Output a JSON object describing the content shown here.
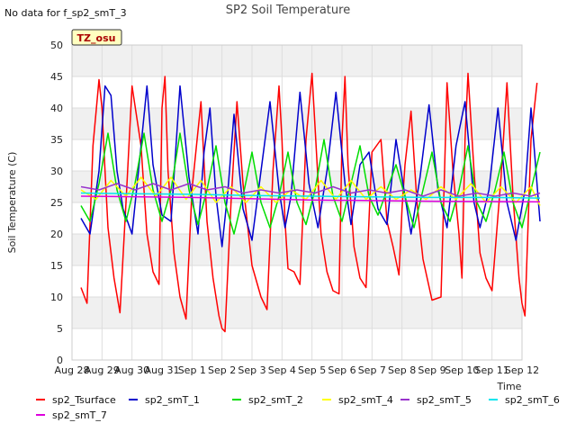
{
  "chart_data": {
    "type": "line",
    "title": "SP2 Soil Temperature",
    "note": "No data for f_sp2_smT_3",
    "badge": "TZ_osu",
    "xlabel": "Time",
    "ylabel": "Soil Temperature (C)",
    "ylim": [
      0,
      50
    ],
    "xlim": [
      0,
      15
    ],
    "yticks": [
      0,
      5,
      10,
      15,
      20,
      25,
      30,
      35,
      40,
      45,
      50
    ],
    "xticks": [
      "Aug 28",
      "Aug 29",
      "Aug 30",
      "Aug 31",
      "Sep 1",
      "Sep 2",
      "Sep 3",
      "Sep 4",
      "Sep 5",
      "Sep 6",
      "Sep 7",
      "Sep 8",
      "Sep 9",
      "Sep 10",
      "Sep 11",
      "Sep 12"
    ],
    "grid": true,
    "legend_position": "bottom",
    "series": [
      {
        "name": "sp2_Tsurface",
        "color": "#ff0000",
        "x": [
          0.3,
          0.5,
          0.7,
          0.9,
          1.0,
          1.1,
          1.2,
          1.4,
          1.6,
          1.8,
          2.0,
          2.3,
          2.5,
          2.7,
          2.9,
          3.0,
          3.1,
          3.2,
          3.4,
          3.6,
          3.8,
          4.0,
          4.3,
          4.5,
          4.7,
          4.9,
          5.0,
          5.1,
          5.3,
          5.5,
          5.7,
          6.0,
          6.3,
          6.5,
          6.7,
          6.9,
          7.0,
          7.1,
          7.2,
          7.4,
          7.6,
          7.8,
          8.0,
          8.3,
          8.5,
          8.7,
          8.9,
          9.0,
          9.1,
          9.2,
          9.4,
          9.6,
          9.8,
          10.0,
          10.3,
          10.5,
          10.7,
          10.9,
          11.0,
          11.1,
          11.3,
          11.5,
          11.7,
          12.0,
          12.3,
          12.5,
          12.7,
          12.9,
          13.0,
          13.1,
          13.2,
          13.4,
          13.6,
          13.8,
          14.0,
          14.3,
          14.5,
          14.7,
          14.9,
          15.0,
          15.1,
          15.3,
          15.5
        ],
        "y": [
          11.5,
          9.0,
          34.0,
          44.5,
          40.0,
          30.0,
          21.0,
          13.0,
          7.5,
          25.0,
          43.5,
          34.0,
          20.0,
          14.0,
          12.0,
          40.0,
          45.0,
          30.0,
          17.0,
          10.0,
          6.5,
          27.0,
          41.0,
          22.0,
          13.0,
          7.0,
          5.0,
          4.5,
          25.0,
          41.0,
          28.0,
          15.0,
          10.0,
          8.0,
          30.0,
          43.5,
          35.0,
          22.0,
          14.5,
          14.0,
          12.0,
          35.0,
          45.5,
          20.0,
          14.0,
          11.0,
          10.5,
          35.0,
          45.0,
          31.0,
          18.0,
          13.0,
          11.5,
          33.0,
          35.0,
          22.0,
          18.0,
          13.5,
          24.0,
          31.0,
          39.5,
          25.0,
          16.0,
          9.5,
          10.0,
          44.0,
          30.0,
          20.0,
          13.0,
          35.0,
          45.5,
          30.0,
          17.0,
          13.0,
          11.0,
          29.0,
          44.0,
          26.0,
          13.0,
          9.0,
          7.0,
          35.0,
          44.0
        ]
      },
      {
        "name": "sp2_smT_1",
        "color": "#0000cc",
        "x": [
          0.3,
          0.6,
          0.9,
          1.1,
          1.3,
          1.5,
          1.7,
          2.0,
          2.3,
          2.5,
          2.7,
          3.0,
          3.3,
          3.6,
          3.9,
          4.2,
          4.4,
          4.6,
          4.8,
          5.0,
          5.2,
          5.4,
          5.7,
          6.0,
          6.3,
          6.6,
          6.9,
          7.1,
          7.3,
          7.6,
          7.9,
          8.2,
          8.5,
          8.8,
          9.1,
          9.3,
          9.6,
          9.9,
          10.2,
          10.5,
          10.8,
          11.1,
          11.3,
          11.6,
          11.9,
          12.2,
          12.5,
          12.8,
          13.1,
          13.4,
          13.6,
          13.9,
          14.2,
          14.5,
          14.8,
          15.1,
          15.3,
          15.6
        ],
        "y": [
          22.5,
          20.0,
          30.0,
          43.5,
          42.0,
          30.0,
          24.0,
          20.0,
          34.0,
          43.5,
          31.0,
          23.0,
          22.0,
          43.5,
          29.0,
          20.0,
          33.0,
          40.0,
          26.0,
          18.0,
          27.0,
          39.0,
          24.0,
          19.0,
          30.0,
          41.0,
          27.0,
          21.0,
          26.0,
          42.5,
          28.0,
          21.0,
          30.0,
          42.5,
          28.0,
          21.5,
          31.0,
          33.0,
          24.0,
          21.5,
          35.0,
          26.0,
          20.0,
          29.0,
          40.5,
          27.0,
          21.0,
          34.0,
          41.0,
          25.0,
          21.0,
          27.0,
          40.0,
          25.0,
          19.0,
          27.0,
          40.0,
          22.0
        ]
      },
      {
        "name": "sp2_smT_2",
        "color": "#00dd00",
        "x": [
          0.3,
          0.6,
          0.9,
          1.2,
          1.5,
          1.8,
          2.1,
          2.4,
          2.7,
          3.0,
          3.3,
          3.6,
          3.9,
          4.2,
          4.5,
          4.8,
          5.1,
          5.4,
          5.7,
          6.0,
          6.3,
          6.6,
          6.9,
          7.2,
          7.5,
          7.8,
          8.1,
          8.4,
          8.7,
          9.0,
          9.3,
          9.6,
          9.9,
          10.2,
          10.5,
          10.8,
          11.1,
          11.4,
          11.7,
          12.0,
          12.3,
          12.6,
          12.9,
          13.2,
          13.5,
          13.8,
          14.1,
          14.4,
          14.7,
          15.0,
          15.3,
          15.6
        ],
        "y": [
          24.5,
          22.0,
          28.0,
          36.0,
          27.0,
          22.0,
          28.0,
          36.0,
          27.0,
          22.0,
          27.0,
          36.0,
          27.0,
          21.5,
          27.0,
          34.0,
          25.0,
          20.0,
          26.0,
          33.0,
          25.0,
          21.0,
          26.0,
          33.0,
          25.0,
          21.5,
          27.0,
          35.0,
          26.0,
          22.0,
          28.0,
          34.0,
          26.0,
          23.0,
          27.0,
          31.0,
          26.0,
          21.0,
          27.0,
          33.0,
          25.0,
          22.0,
          27.0,
          34.0,
          25.0,
          22.0,
          27.0,
          33.0,
          25.0,
          21.0,
          27.0,
          33.0
        ]
      },
      {
        "name": "sp2_smT_4",
        "color": "#ffff00",
        "x": [
          0.3,
          0.8,
          1.3,
          1.8,
          2.3,
          2.8,
          3.3,
          3.8,
          4.3,
          4.8,
          5.3,
          5.8,
          6.3,
          6.8,
          7.3,
          7.8,
          8.3,
          8.8,
          9.3,
          9.8,
          10.3,
          10.8,
          11.3,
          11.8,
          12.3,
          12.8,
          13.3,
          13.8,
          14.3,
          14.8,
          15.3,
          15.6
        ],
        "y": [
          27.0,
          25.5,
          28.5,
          26.0,
          29.0,
          26.0,
          29.0,
          25.5,
          28.5,
          25.0,
          27.5,
          25.0,
          27.5,
          25.0,
          27.0,
          25.5,
          28.5,
          25.5,
          28.5,
          25.5,
          27.5,
          25.5,
          27.0,
          25.5,
          27.5,
          25.5,
          28.0,
          25.0,
          27.5,
          25.0,
          27.5,
          24.5
        ]
      },
      {
        "name": "sp2_smT_5",
        "color": "#9933cc",
        "x": [
          0.3,
          0.9,
          1.5,
          2.1,
          2.7,
          3.3,
          3.9,
          4.5,
          5.1,
          5.7,
          6.3,
          6.9,
          7.5,
          8.1,
          8.7,
          9.3,
          9.9,
          10.5,
          11.1,
          11.7,
          12.3,
          12.9,
          13.5,
          14.1,
          14.7,
          15.3,
          15.6
        ],
        "y": [
          27.5,
          27.0,
          28.0,
          27.0,
          28.0,
          27.0,
          28.0,
          27.0,
          27.5,
          26.5,
          27.0,
          26.5,
          27.0,
          26.5,
          27.5,
          26.5,
          27.0,
          26.5,
          27.0,
          26.0,
          27.0,
          26.0,
          26.5,
          26.0,
          26.5,
          26.0,
          26.5
        ]
      },
      {
        "name": "sp2_smT_6",
        "color": "#00e5ee",
        "x": [
          0.3,
          2.0,
          4.0,
          6.0,
          8.0,
          10.0,
          12.0,
          14.0,
          15.6
        ],
        "y": [
          26.5,
          26.4,
          26.3,
          26.1,
          26.0,
          25.9,
          25.8,
          25.8,
          25.7
        ]
      },
      {
        "name": "sp2_smT_7",
        "color": "#dd00dd",
        "x": [
          0.3,
          4.0,
          8.0,
          12.0,
          15.6
        ],
        "y": [
          26.0,
          25.8,
          25.4,
          25.2,
          25.1
        ]
      }
    ]
  }
}
